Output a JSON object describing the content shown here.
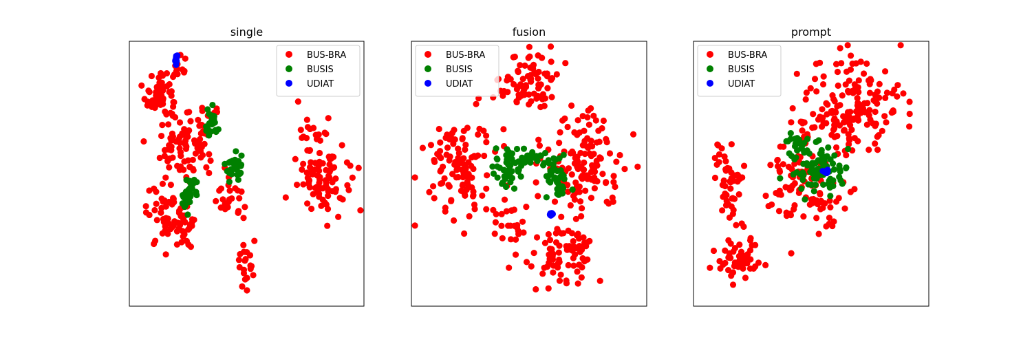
{
  "chart_data": [
    {
      "type": "scatter",
      "title": "single",
      "legend_position": "upper-right",
      "xlim": [
        -100,
        100
      ],
      "ylim": [
        -100,
        100
      ],
      "grid": false,
      "axis_ticks": false,
      "series": [
        {
          "name": "BUS-BRA",
          "color": "#ff0000",
          "clusters": [
            {
              "cx": -73,
              "cy": 60,
              "rx": 12,
              "ry": 20,
              "n": 70
            },
            {
              "cx": -55,
              "cy": 20,
              "rx": 17,
              "ry": 22,
              "n": 60
            },
            {
              "cx": -70,
              "cy": -30,
              "rx": 14,
              "ry": 22,
              "n": 45
            },
            {
              "cx": -50,
              "cy": -40,
              "rx": 12,
              "ry": 12,
              "n": 25
            },
            {
              "cx": -35,
              "cy": 30,
              "rx": 14,
              "ry": 20,
              "n": 25
            },
            {
              "cx": -15,
              "cy": -20,
              "rx": 12,
              "ry": 15,
              "n": 25
            },
            {
              "cx": 0,
              "cy": -72,
              "rx": 7,
              "ry": 18,
              "n": 20
            },
            {
              "cx": 65,
              "cy": 5,
              "rx": 20,
              "ry": 33,
              "n": 100
            },
            {
              "cx": -58,
              "cy": 80,
              "rx": 6,
              "ry": 8,
              "n": 10
            }
          ]
        },
        {
          "name": "BUSIS",
          "color": "#008000",
          "clusters": [
            {
              "cx": -30,
              "cy": 35,
              "rx": 5,
              "ry": 12,
              "n": 25
            },
            {
              "cx": -10,
              "cy": 5,
              "rx": 8,
              "ry": 9,
              "n": 30
            },
            {
              "cx": -50,
              "cy": -15,
              "rx": 5,
              "ry": 14,
              "n": 40
            }
          ]
        },
        {
          "name": "UDIAT",
          "color": "#0000ff",
          "clusters": [
            {
              "cx": -60,
              "cy": 86,
              "rx": 1.2,
              "ry": 3.5,
              "n": 12
            }
          ]
        }
      ]
    },
    {
      "type": "scatter",
      "title": "fusion",
      "legend_position": "upper-left",
      "xlim": [
        -100,
        100
      ],
      "ylim": [
        -100,
        100
      ],
      "grid": false,
      "axis_ticks": false,
      "series": [
        {
          "name": "BUS-BRA",
          "color": "#ff0000",
          "clusters": [
            {
              "cx": 0,
              "cy": 70,
              "rx": 22,
              "ry": 22,
              "n": 80
            },
            {
              "cx": -60,
              "cy": 5,
              "rx": 25,
              "ry": 35,
              "n": 110
            },
            {
              "cx": 45,
              "cy": 10,
              "rx": 32,
              "ry": 36,
              "n": 130
            },
            {
              "cx": 30,
              "cy": -60,
              "rx": 28,
              "ry": 20,
              "n": 80
            },
            {
              "cx": -15,
              "cy": -35,
              "rx": 15,
              "ry": 15,
              "n": 25
            }
          ]
        },
        {
          "name": "BUSIS",
          "color": "#008000",
          "clusters": [
            {
              "cx": -20,
              "cy": 5,
              "rx": 10,
              "ry": 14,
              "n": 45
            },
            {
              "cx": 20,
              "cy": 0,
              "rx": 12,
              "ry": 16,
              "n": 45
            },
            {
              "cx": -3,
              "cy": 12,
              "rx": 10,
              "ry": 5,
              "n": 20
            }
          ]
        },
        {
          "name": "UDIAT",
          "color": "#0000ff",
          "clusters": [
            {
              "cx": 18,
              "cy": -31,
              "rx": 2,
              "ry": 1.5,
              "n": 12
            }
          ]
        }
      ]
    },
    {
      "type": "scatter",
      "title": "prompt",
      "legend_position": "upper-left",
      "xlim": [
        -100,
        100
      ],
      "ylim": [
        -100,
        100
      ],
      "grid": false,
      "axis_ticks": false,
      "series": [
        {
          "name": "BUS-BRA",
          "color": "#ff0000",
          "clusters": [
            {
              "cx": 35,
              "cy": 50,
              "rx": 40,
              "ry": 35,
              "n": 170
            },
            {
              "cx": -70,
              "cy": -10,
              "rx": 12,
              "ry": 30,
              "n": 50
            },
            {
              "cx": -60,
              "cy": -65,
              "rx": 18,
              "ry": 15,
              "n": 50
            },
            {
              "cx": 0,
              "cy": -20,
              "rx": 30,
              "ry": 22,
              "n": 60
            },
            {
              "cx": -15,
              "cy": 5,
              "rx": 25,
              "ry": 25,
              "n": 40
            }
          ]
        },
        {
          "name": "BUSIS",
          "color": "#008000",
          "clusters": [
            {
              "cx": 5,
              "cy": 5,
              "rx": 22,
              "ry": 18,
              "n": 90
            },
            {
              "cx": -12,
              "cy": 25,
              "rx": 8,
              "ry": 6,
              "n": 15
            }
          ]
        },
        {
          "name": "UDIAT",
          "color": "#0000ff",
          "clusters": [
            {
              "cx": 12,
              "cy": 1,
              "rx": 2,
              "ry": 1.5,
              "n": 10
            }
          ]
        }
      ]
    }
  ]
}
